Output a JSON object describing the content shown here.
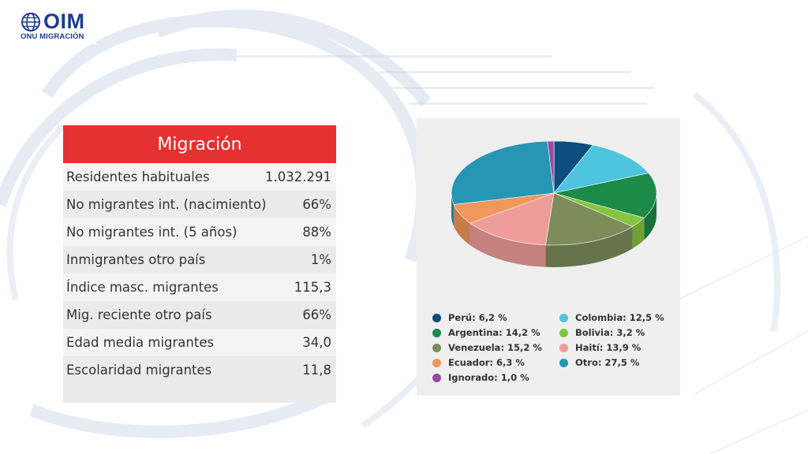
{
  "logo": {
    "name": "OIM",
    "subtitle": "ONU MIGRACIÓN"
  },
  "table": {
    "title": "Migración",
    "rows": [
      {
        "label": "Residentes habituales",
        "value": "1.032.291"
      },
      {
        "label": "No migrantes int. (nacimiento)",
        "value": "66%"
      },
      {
        "label": "No migrantes int. (5 años)",
        "value": "88%"
      },
      {
        "label": "Inmigrantes otro país",
        "value": "1%"
      },
      {
        "label": "Índice masc. migrantes",
        "value": "115,3"
      },
      {
        "label": "Mig. reciente otro país",
        "value": "66%"
      },
      {
        "label": "Edad media migrantes",
        "value": "34,0"
      },
      {
        "label": "Escolaridad migrantes",
        "value": "11,8"
      }
    ]
  },
  "chart_data": {
    "type": "pie",
    "title": "",
    "legend_placement": "bottom",
    "slices": [
      {
        "name": "Perú",
        "value": 6.2,
        "label": "Perú: 6,2 %",
        "color": "#0d4e7e"
      },
      {
        "name": "Colombia",
        "value": 12.5,
        "label": "Colombia: 12,5 %",
        "color": "#4fc4df"
      },
      {
        "name": "Argentina",
        "value": 14.2,
        "label": "Argentina: 14,2 %",
        "color": "#1b8b47"
      },
      {
        "name": "Bolivia",
        "value": 3.2,
        "label": "Bolivia: 3,2 %",
        "color": "#86c440"
      },
      {
        "name": "Venezuela",
        "value": 15.2,
        "label": "Venezuela: 15,2 %",
        "color": "#7d8c5b"
      },
      {
        "name": "Haití",
        "value": 13.9,
        "label": "Haití: 13,9 %",
        "color": "#ef9d9a"
      },
      {
        "name": "Ecuador",
        "value": 6.3,
        "label": "Ecuador: 6,3 %",
        "color": "#f0975a"
      },
      {
        "name": "Otro",
        "value": 27.5,
        "label": "Otro: 27,5 %",
        "color": "#2597b5"
      },
      {
        "name": "Ignorado",
        "value": 1.0,
        "label": "Ignorado: 1,0 %",
        "color": "#9a4a9f"
      }
    ]
  }
}
